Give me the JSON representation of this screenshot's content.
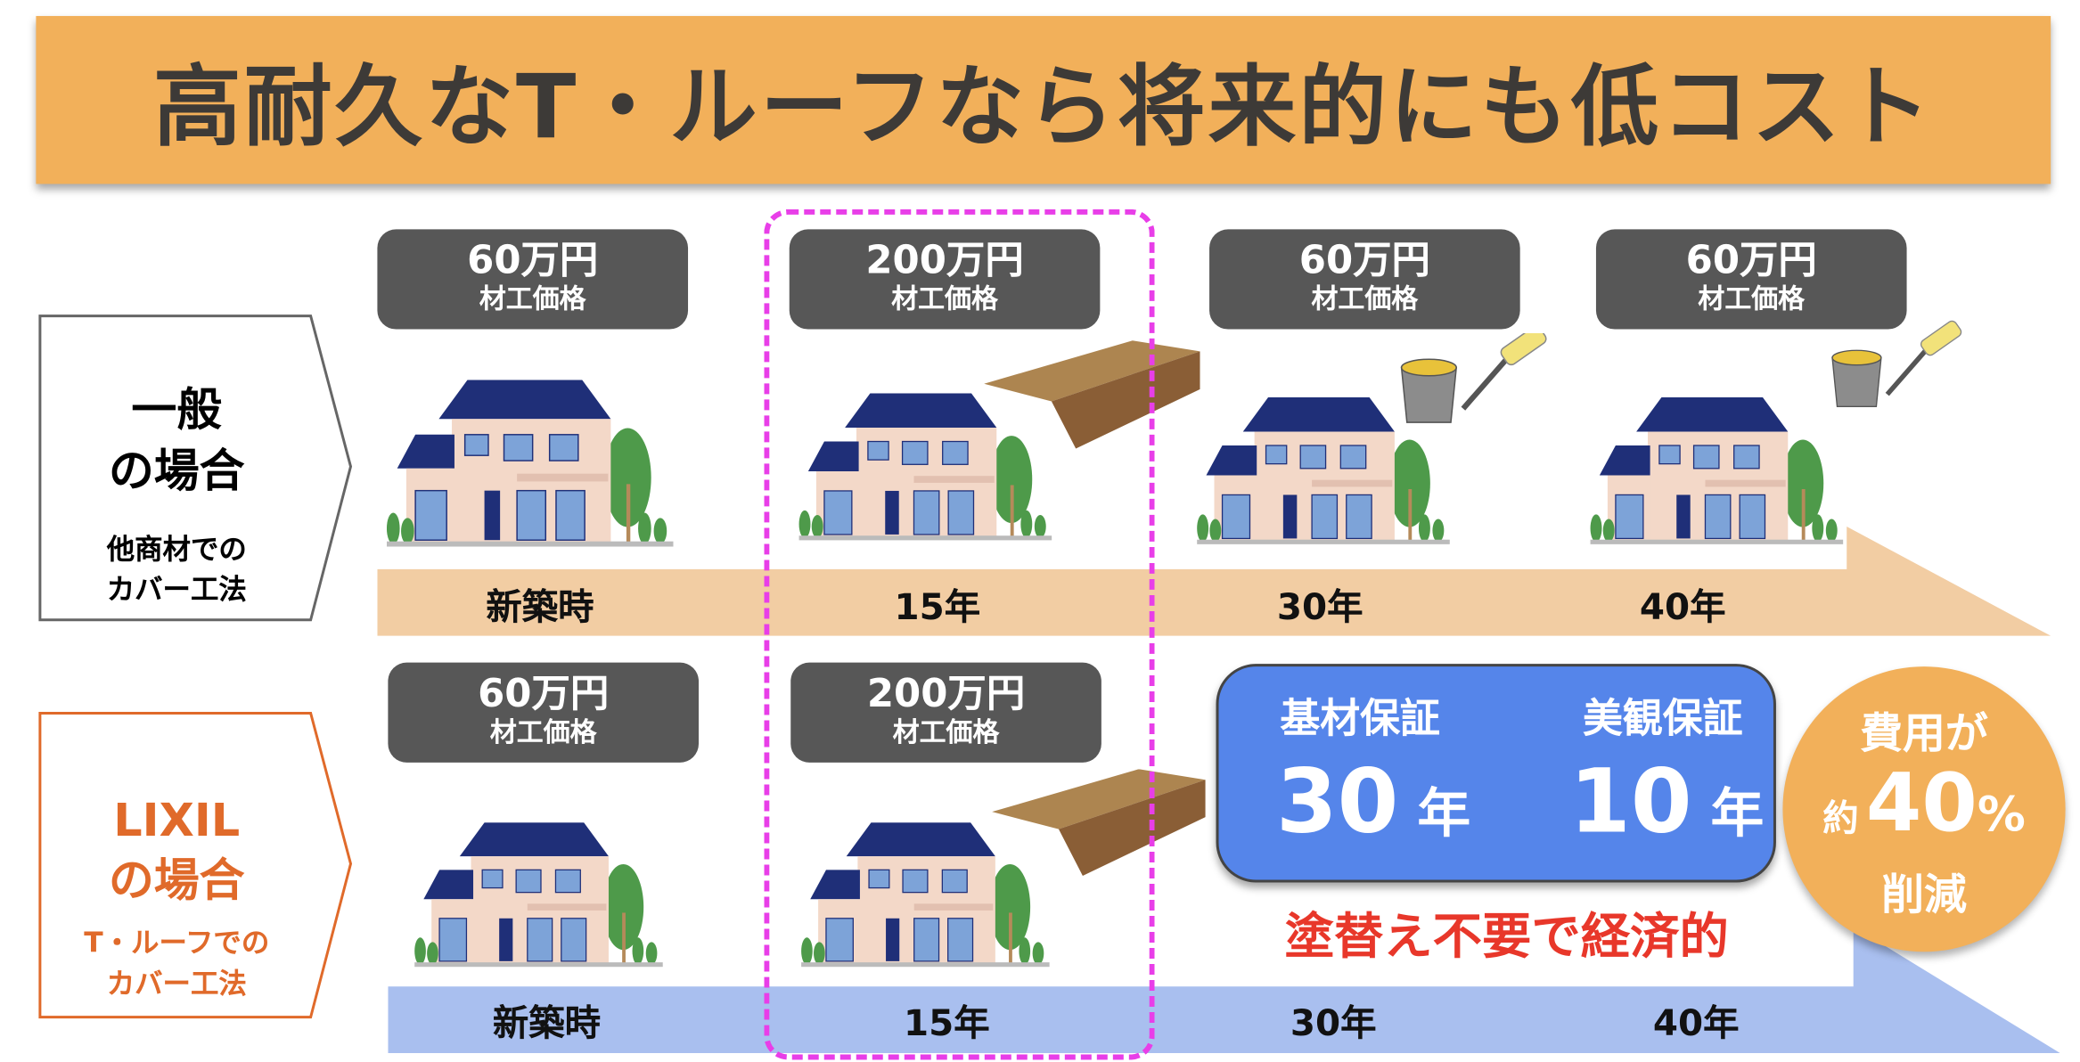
{
  "title": "高耐久なT・ルーフなら将来的にも低コスト",
  "colors": {
    "title_bg": "#f2b05a",
    "price_box": "#575757",
    "timeline_general": "#f2cda3",
    "timeline_lixil": "#a9bfef",
    "highlight_dash": "#e83ee8",
    "warranty_box": "#5585ea",
    "accent_red": "#e8372a",
    "lixil_orange": "#e06a2a"
  },
  "general": {
    "label_main_1": "一般",
    "label_main_2": "の場合",
    "label_sub_1": "他商材での",
    "label_sub_2": "カバー工法",
    "prices": [
      {
        "amount": "60万円",
        "note": "材工価格"
      },
      {
        "amount": "200万円",
        "note": "材工価格"
      },
      {
        "amount": "60万円",
        "note": "材工価格"
      },
      {
        "amount": "60万円",
        "note": "材工価格"
      }
    ],
    "timeline": [
      "新築時",
      "15年",
      "30年",
      "40年"
    ]
  },
  "lixil": {
    "label_main_1": "LIXIL",
    "label_main_2": "の場合",
    "label_sub_1": "T・ルーフでの",
    "label_sub_2": "カバー工法",
    "prices": [
      {
        "amount": "60万円",
        "note": "材工価格"
      },
      {
        "amount": "200万円",
        "note": "材工価格"
      }
    ],
    "timeline": [
      "新築時",
      "15年",
      "30年",
      "40年"
    ]
  },
  "warranty": {
    "base_label": "基材保証",
    "base_years": "30",
    "appearance_label": "美観保証",
    "appearance_years": "10",
    "unit": "年"
  },
  "tagline": "塗替え不要で経済的",
  "savings": {
    "line1": "費用が",
    "prefix": "約",
    "value": "40",
    "unit": "%",
    "line3": "削減"
  }
}
